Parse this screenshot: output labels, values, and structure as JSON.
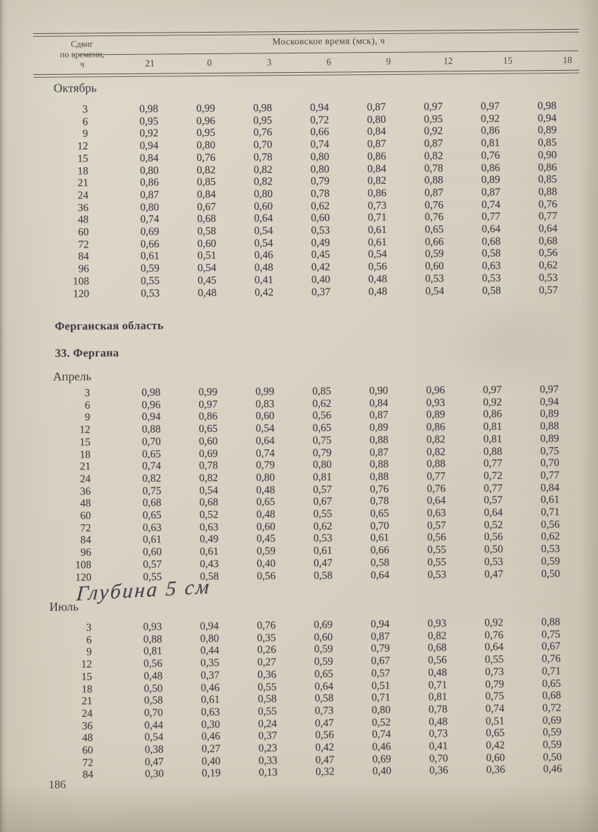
{
  "page_number": "186",
  "handwritten_note": "Глубина 5 см",
  "header": {
    "shift_lines": [
      "Сдвиг",
      "по времени,",
      "ч"
    ],
    "moscow_label": "Московское время (мск), ч",
    "columns": [
      "21",
      "0",
      "3",
      "6",
      "9",
      "12",
      "15",
      "18"
    ]
  },
  "region_heading": "Ферганская область",
  "station_heading": "33. Фергана",
  "months": [
    {
      "label": "Октябрь",
      "rows": [
        {
          "shift": "3",
          "values": [
            "0,98",
            "0,99",
            "0,98",
            "0,94",
            "0,87",
            "0,97",
            "0,97",
            "0,98"
          ]
        },
        {
          "shift": "6",
          "values": [
            "0,95",
            "0,96",
            "0,95",
            "0,72",
            "0,80",
            "0,95",
            "0,92",
            "0,94"
          ]
        },
        {
          "shift": "9",
          "values": [
            "0,92",
            "0,95",
            "0,76",
            "0,66",
            "0,84",
            "0,92",
            "0,86",
            "0,89"
          ]
        },
        {
          "shift": "12",
          "values": [
            "0,94",
            "0,80",
            "0,70",
            "0,74",
            "0,87",
            "0,87",
            "0,81",
            "0,85"
          ]
        },
        {
          "shift": "15",
          "values": [
            "0,84",
            "0,76",
            "0,78",
            "0,80",
            "0,86",
            "0,82",
            "0,76",
            "0,90"
          ]
        },
        {
          "shift": "18",
          "values": [
            "0,80",
            "0,82",
            "0,82",
            "0,80",
            "0,84",
            "0,78",
            "0,86",
            "0,86"
          ]
        },
        {
          "shift": "21",
          "values": [
            "0,86",
            "0,85",
            "0,82",
            "0,79",
            "0,82",
            "0,88",
            "0,89",
            "0,85"
          ]
        },
        {
          "shift": "24",
          "values": [
            "0,87",
            "0,84",
            "0,80",
            "0,78",
            "0,86",
            "0,87",
            "0,87",
            "0,88"
          ]
        },
        {
          "shift": "36",
          "values": [
            "0,80",
            "0,67",
            "0,60",
            "0,62",
            "0,73",
            "0,76",
            "0,74",
            "0,76"
          ]
        },
        {
          "shift": "48",
          "values": [
            "0,74",
            "0,68",
            "0,64",
            "0,60",
            "0,71",
            "0,76",
            "0,77",
            "0,77"
          ]
        },
        {
          "shift": "60",
          "values": [
            "0,69",
            "0,58",
            "0,54",
            "0,53",
            "0,61",
            "0,65",
            "0,64",
            "0,64"
          ]
        },
        {
          "shift": "72",
          "values": [
            "0,66",
            "0,60",
            "0,54",
            "0,49",
            "0,61",
            "0,66",
            "0,68",
            "0,68"
          ]
        },
        {
          "shift": "84",
          "values": [
            "0,61",
            "0,51",
            "0,46",
            "0,45",
            "0,54",
            "0,59",
            "0,58",
            "0,56"
          ]
        },
        {
          "shift": "96",
          "values": [
            "0,59",
            "0,54",
            "0,48",
            "0,42",
            "0,56",
            "0,60",
            "0,63",
            "0,62"
          ]
        },
        {
          "shift": "108",
          "values": [
            "0,55",
            "0,45",
            "0,41",
            "0,40",
            "0,48",
            "0,53",
            "0,53",
            "0,53"
          ]
        },
        {
          "shift": "120",
          "values": [
            "0,53",
            "0,48",
            "0,42",
            "0,37",
            "0,48",
            "0,54",
            "0,58",
            "0,57"
          ]
        }
      ]
    },
    {
      "label": "Апрель",
      "rows": [
        {
          "shift": "3",
          "values": [
            "0,98",
            "0,99",
            "0,99",
            "0,85",
            "0,90",
            "0,96",
            "0,97",
            "0,97"
          ]
        },
        {
          "shift": "6",
          "values": [
            "0,96",
            "0,97",
            "0,83",
            "0,62",
            "0,84",
            "0,93",
            "0,92",
            "0,94"
          ]
        },
        {
          "shift": "9",
          "values": [
            "0,94",
            "0,86",
            "0,60",
            "0,56",
            "0,87",
            "0,89",
            "0,86",
            "0,89"
          ]
        },
        {
          "shift": "12",
          "values": [
            "0,88",
            "0,65",
            "0,54",
            "0,65",
            "0,89",
            "0,86",
            "0,81",
            "0,88"
          ]
        },
        {
          "shift": "15",
          "values": [
            "0,70",
            "0,60",
            "0,64",
            "0,75",
            "0,88",
            "0,82",
            "0,81",
            "0,89"
          ]
        },
        {
          "shift": "18",
          "values": [
            "0,65",
            "0,69",
            "0,74",
            "0,79",
            "0,87",
            "0,82",
            "0,88",
            "0,75"
          ]
        },
        {
          "shift": "21",
          "values": [
            "0,74",
            "0,78",
            "0,79",
            "0,80",
            "0,88",
            "0,88",
            "0,77",
            "0,70"
          ]
        },
        {
          "shift": "24",
          "values": [
            "0,82",
            "0,82",
            "0,80",
            "0,81",
            "0,88",
            "0,77",
            "0,72",
            "0,77"
          ]
        },
        {
          "shift": "36",
          "values": [
            "0,75",
            "0,54",
            "0,48",
            "0,57",
            "0,76",
            "0,76",
            "0,77",
            "0,84"
          ]
        },
        {
          "shift": "48",
          "values": [
            "0,68",
            "0,68",
            "0,65",
            "0,67",
            "0,78",
            "0,64",
            "0,57",
            "0,61"
          ]
        },
        {
          "shift": "60",
          "values": [
            "0,65",
            "0,52",
            "0,48",
            "0,55",
            "0,65",
            "0,63",
            "0,64",
            "0,71"
          ]
        },
        {
          "shift": "72",
          "values": [
            "0,63",
            "0,63",
            "0,60",
            "0,62",
            "0,70",
            "0,57",
            "0,52",
            "0,56"
          ]
        },
        {
          "shift": "84",
          "values": [
            "0,61",
            "0,49",
            "0,45",
            "0,53",
            "0,61",
            "0,56",
            "0,56",
            "0,62"
          ]
        },
        {
          "shift": "96",
          "values": [
            "0,60",
            "0,61",
            "0,59",
            "0,61",
            "0,66",
            "0,55",
            "0,50",
            "0,53"
          ]
        },
        {
          "shift": "108",
          "values": [
            "0,57",
            "0,43",
            "0,40",
            "0,47",
            "0,58",
            "0,55",
            "0,53",
            "0,59"
          ]
        },
        {
          "shift": "120",
          "values": [
            "0,55",
            "0,58",
            "0,56",
            "0,58",
            "0,64",
            "0,53",
            "0,47",
            "0,50"
          ]
        }
      ]
    },
    {
      "label": "Июль",
      "rows": [
        {
          "shift": "3",
          "values": [
            "0,93",
            "0,94",
            "0,76",
            "0,69",
            "0,94",
            "0,93",
            "0,92",
            "0,88"
          ]
        },
        {
          "shift": "6",
          "values": [
            "0,88",
            "0,80",
            "0,35",
            "0,60",
            "0,87",
            "0,82",
            "0,76",
            "0,75"
          ]
        },
        {
          "shift": "9",
          "values": [
            "0,81",
            "0,44",
            "0,26",
            "0,59",
            "0,79",
            "0,68",
            "0,64",
            "0,67"
          ]
        },
        {
          "shift": "12",
          "values": [
            "0,56",
            "0,35",
            "0,27",
            "0,59",
            "0,67",
            "0,56",
            "0,55",
            "0,76"
          ]
        },
        {
          "shift": "15",
          "values": [
            "0,48",
            "0,37",
            "0,36",
            "0,65",
            "0,57",
            "0,48",
            "0,73",
            "0,71"
          ]
        },
        {
          "shift": "18",
          "values": [
            "0,50",
            "0,46",
            "0,55",
            "0,64",
            "0,51",
            "0,71",
            "0,79",
            "0,65"
          ]
        },
        {
          "shift": "21",
          "values": [
            "0,58",
            "0,61",
            "0,58",
            "0,58",
            "0,71",
            "0,81",
            "0,75",
            "0,68"
          ]
        },
        {
          "shift": "24",
          "values": [
            "0,70",
            "0,63",
            "0,55",
            "0,73",
            "0,80",
            "0,78",
            "0,74",
            "0,72"
          ]
        },
        {
          "shift": "36",
          "values": [
            "0,44",
            "0,30",
            "0,24",
            "0,47",
            "0,52",
            "0,48",
            "0,51",
            "0,69"
          ]
        },
        {
          "shift": "48",
          "values": [
            "0,54",
            "0,46",
            "0,37",
            "0,56",
            "0,74",
            "0,73",
            "0,65",
            "0,59"
          ]
        },
        {
          "shift": "60",
          "values": [
            "0,38",
            "0,27",
            "0,23",
            "0,42",
            "0,46",
            "0,41",
            "0,42",
            "0,59"
          ]
        },
        {
          "shift": "72",
          "values": [
            "0,47",
            "0,40",
            "0,33",
            "0,47",
            "0,69",
            "0,70",
            "0,60",
            "0,50"
          ]
        },
        {
          "shift": "84",
          "values": [
            "0,30",
            "0,19",
            "0,13",
            "0,32",
            "0,40",
            "0,36",
            "0,36",
            "0,46"
          ]
        }
      ]
    }
  ]
}
